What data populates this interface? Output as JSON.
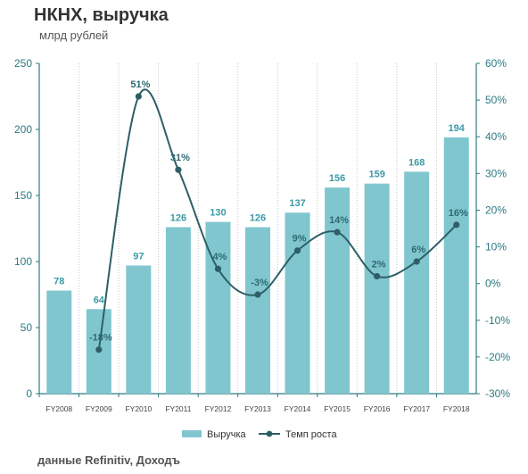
{
  "title": "НКНХ, выручка",
  "subtitle": "млрд рублей",
  "footer": "данные Refinitiv, Доходъ",
  "colors": {
    "bar": "#80c6cf",
    "line": "#2e5f66",
    "axis": "#2e7a82",
    "bar_label": "#3a9aa5",
    "line_label": "#2e6a72"
  },
  "chart_data": {
    "type": "bar",
    "categories": [
      "FY2008",
      "FY2009",
      "FY2010",
      "FY2011",
      "FY2012",
      "FY2013",
      "FY2014",
      "FY2015",
      "FY2016",
      "FY2017",
      "FY2018"
    ],
    "series": [
      {
        "name": "Выручка",
        "type": "bar",
        "axis": "left",
        "values": [
          78,
          64,
          97,
          126,
          130,
          126,
          137,
          156,
          159,
          168,
          194
        ],
        "labels": [
          "78",
          "64",
          "97",
          "126",
          "130",
          "126",
          "137",
          "156",
          "159",
          "168",
          "194"
        ]
      },
      {
        "name": "Темп роста",
        "type": "line",
        "axis": "right",
        "smooth": true,
        "values": [
          null,
          -18,
          51,
          31,
          4,
          -3,
          9,
          14,
          2,
          6,
          16
        ],
        "labels": [
          "",
          "-18%",
          "51%",
          "31%",
          "4%",
          "-3%",
          "9%",
          "14%",
          "2%",
          "6%",
          "16%"
        ]
      }
    ],
    "y_left": {
      "min": 0,
      "max": 250,
      "ticks": [
        "0",
        "50",
        "100",
        "150",
        "200",
        "250"
      ]
    },
    "y_right": {
      "min": -30,
      "max": 60,
      "ticks": [
        "-30%",
        "-20%",
        "-10%",
        "0%",
        "10%",
        "20%",
        "30%",
        "40%",
        "50%",
        "60%"
      ]
    },
    "grid": "vertical-dotted",
    "legend": {
      "position": "bottom",
      "items": [
        "Выручка",
        "Темп роста"
      ]
    }
  }
}
